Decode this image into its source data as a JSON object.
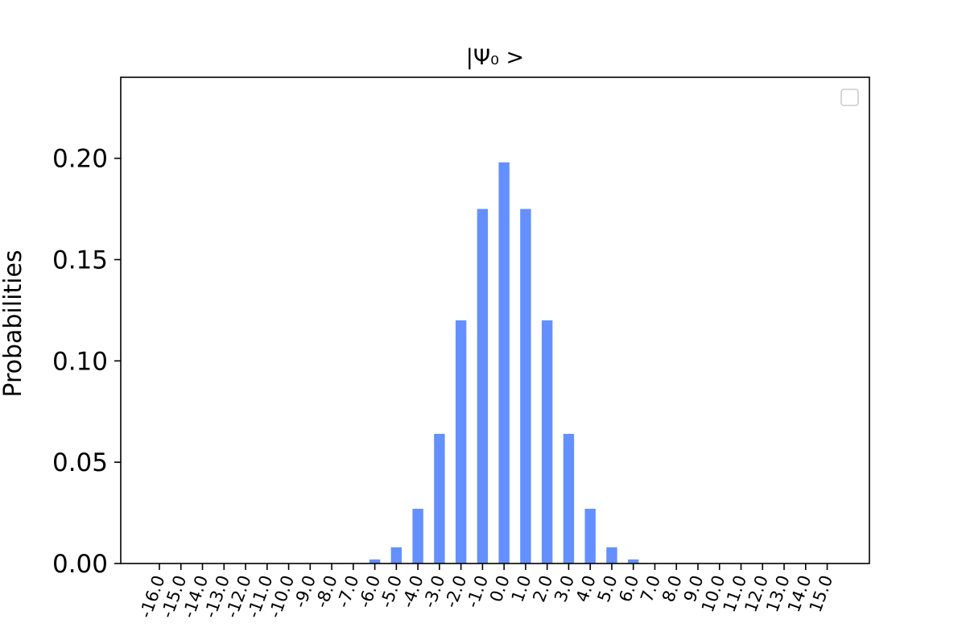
{
  "chart_data": {
    "type": "bar",
    "title": "|Ψ₀ >",
    "xlabel": "",
    "ylabel": "Probabilities",
    "categories": [
      "-16.0",
      "-15.0",
      "-14.0",
      "-13.0",
      "-12.0",
      "-11.0",
      "-10.0",
      "-9.0",
      "-8.0",
      "-7.0",
      "-6.0",
      "-5.0",
      "-4.0",
      "-3.0",
      "-2.0",
      "-1.0",
      "0.0",
      "1.0",
      "2.0",
      "3.0",
      "4.0",
      "5.0",
      "6.0",
      "7.0",
      "8.0",
      "9.0",
      "10.0",
      "11.0",
      "12.0",
      "13.0",
      "14.0",
      "15.0"
    ],
    "values": [
      0,
      0,
      0,
      0,
      0,
      0,
      0,
      0,
      0,
      0,
      0.002,
      0.008,
      0.027,
      0.064,
      0.12,
      0.175,
      0.198,
      0.175,
      0.12,
      0.064,
      0.027,
      0.008,
      0.002,
      0,
      0,
      0,
      0,
      0,
      0,
      0,
      0,
      0
    ],
    "ylim": [
      0,
      0.24
    ],
    "yticks": [
      "0.00",
      "0.05",
      "0.10",
      "0.15",
      "0.20"
    ],
    "bar_color": "#648fff",
    "legend": "top-right",
    "grid": false
  }
}
